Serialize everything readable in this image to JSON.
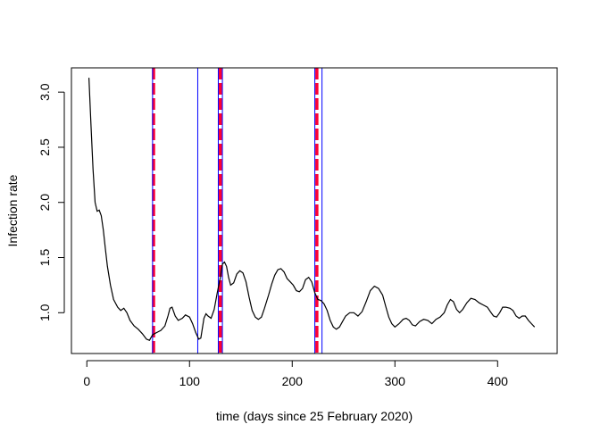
{
  "chart_data": {
    "type": "line",
    "title": "",
    "xlabel": "time (days since 25 February 2020)",
    "ylabel": "Infection rate",
    "xlim": [
      -15,
      458
    ],
    "ylim": [
      0.63,
      3.22
    ],
    "x_ticks": [
      0,
      100,
      200,
      300,
      400
    ],
    "y_ticks": [
      1.0,
      1.5,
      2.0,
      2.5,
      3.0
    ],
    "x_tick_labels": [
      "0",
      "100",
      "200",
      "300",
      "400"
    ],
    "y_tick_labels": [
      "1.0",
      "1.5",
      "2.0",
      "2.5",
      "3.0"
    ],
    "grid": false,
    "legend": "none",
    "line_color": "#000000",
    "series": [
      {
        "points": [
          [
            2,
            3.13
          ],
          [
            4,
            2.7
          ],
          [
            6,
            2.3
          ],
          [
            8,
            2.0
          ],
          [
            10,
            1.92
          ],
          [
            12,
            1.93
          ],
          [
            14,
            1.88
          ],
          [
            16,
            1.75
          ],
          [
            18,
            1.58
          ],
          [
            20,
            1.42
          ],
          [
            23,
            1.25
          ],
          [
            26,
            1.12
          ],
          [
            30,
            1.05
          ],
          [
            33,
            1.02
          ],
          [
            36,
            1.04
          ],
          [
            39,
            1.0
          ],
          [
            42,
            0.93
          ],
          [
            46,
            0.88
          ],
          [
            50,
            0.85
          ],
          [
            54,
            0.81
          ],
          [
            58,
            0.76
          ],
          [
            61,
            0.75
          ],
          [
            64,
            0.8
          ],
          [
            68,
            0.82
          ],
          [
            72,
            0.84
          ],
          [
            76,
            0.88
          ],
          [
            79,
            0.97
          ],
          [
            81,
            1.04
          ],
          [
            83,
            1.05
          ],
          [
            86,
            0.97
          ],
          [
            89,
            0.93
          ],
          [
            93,
            0.95
          ],
          [
            96,
            0.98
          ],
          [
            100,
            0.96
          ],
          [
            103,
            0.9
          ],
          [
            106,
            0.82
          ],
          [
            109,
            0.76
          ],
          [
            111,
            0.77
          ],
          [
            114,
            0.95
          ],
          [
            116,
            0.99
          ],
          [
            118,
            0.97
          ],
          [
            121,
            0.95
          ],
          [
            124,
            1.03
          ],
          [
            127,
            1.18
          ],
          [
            130,
            1.32
          ],
          [
            132,
            1.44
          ],
          [
            134,
            1.46
          ],
          [
            136,
            1.42
          ],
          [
            138,
            1.32
          ],
          [
            140,
            1.25
          ],
          [
            143,
            1.27
          ],
          [
            146,
            1.35
          ],
          [
            149,
            1.38
          ],
          [
            152,
            1.36
          ],
          [
            155,
            1.28
          ],
          [
            158,
            1.14
          ],
          [
            161,
            1.02
          ],
          [
            164,
            0.96
          ],
          [
            167,
            0.94
          ],
          [
            170,
            0.96
          ],
          [
            173,
            1.04
          ],
          [
            177,
            1.16
          ],
          [
            180,
            1.26
          ],
          [
            183,
            1.34
          ],
          [
            186,
            1.39
          ],
          [
            189,
            1.4
          ],
          [
            192,
            1.37
          ],
          [
            195,
            1.31
          ],
          [
            198,
            1.28
          ],
          [
            201,
            1.25
          ],
          [
            204,
            1.2
          ],
          [
            207,
            1.19
          ],
          [
            210,
            1.22
          ],
          [
            213,
            1.3
          ],
          [
            216,
            1.32
          ],
          [
            219,
            1.28
          ],
          [
            222,
            1.18
          ],
          [
            225,
            1.12
          ],
          [
            228,
            1.11
          ],
          [
            231,
            1.08
          ],
          [
            234,
            1.02
          ],
          [
            237,
            0.93
          ],
          [
            240,
            0.87
          ],
          [
            243,
            0.85
          ],
          [
            246,
            0.87
          ],
          [
            249,
            0.92
          ],
          [
            252,
            0.97
          ],
          [
            256,
            1.0
          ],
          [
            260,
            1.0
          ],
          [
            264,
            0.97
          ],
          [
            268,
            1.01
          ],
          [
            272,
            1.1
          ],
          [
            276,
            1.2
          ],
          [
            280,
            1.24
          ],
          [
            284,
            1.22
          ],
          [
            288,
            1.16
          ],
          [
            291,
            1.06
          ],
          [
            294,
            0.96
          ],
          [
            297,
            0.9
          ],
          [
            300,
            0.87
          ],
          [
            304,
            0.9
          ],
          [
            308,
            0.94
          ],
          [
            311,
            0.95
          ],
          [
            314,
            0.93
          ],
          [
            317,
            0.89
          ],
          [
            320,
            0.88
          ],
          [
            324,
            0.92
          ],
          [
            328,
            0.94
          ],
          [
            332,
            0.93
          ],
          [
            336,
            0.9
          ],
          [
            340,
            0.94
          ],
          [
            344,
            0.96
          ],
          [
            348,
            1.0
          ],
          [
            351,
            1.07
          ],
          [
            354,
            1.12
          ],
          [
            357,
            1.1
          ],
          [
            360,
            1.03
          ],
          [
            363,
            1.0
          ],
          [
            366,
            1.03
          ],
          [
            370,
            1.09
          ],
          [
            374,
            1.13
          ],
          [
            378,
            1.12
          ],
          [
            382,
            1.09
          ],
          [
            386,
            1.07
          ],
          [
            390,
            1.05
          ],
          [
            393,
            1.01
          ],
          [
            396,
            0.97
          ],
          [
            399,
            0.96
          ],
          [
            402,
            1.0
          ],
          [
            405,
            1.05
          ],
          [
            408,
            1.05
          ],
          [
            412,
            1.04
          ],
          [
            415,
            1.02
          ],
          [
            418,
            0.97
          ],
          [
            421,
            0.95
          ],
          [
            424,
            0.97
          ],
          [
            427,
            0.97
          ],
          [
            430,
            0.93
          ],
          [
            433,
            0.9
          ],
          [
            436,
            0.87
          ]
        ]
      }
    ],
    "vertical_lines": [
      {
        "x": 65,
        "color": "#ff0033",
        "style": "dashed",
        "kind": "red-dashed"
      },
      {
        "x": 130,
        "color": "#ff0033",
        "style": "dashed",
        "kind": "red-dashed"
      },
      {
        "x": 224,
        "color": "#ff0033",
        "style": "dashed",
        "kind": "red-dashed"
      },
      {
        "x": 64,
        "color": "#0000ff",
        "style": "solid",
        "kind": "blue"
      },
      {
        "x": 108,
        "color": "#0000ff",
        "style": "solid",
        "kind": "blue"
      },
      {
        "x": 128,
        "color": "#0000ff",
        "style": "solid",
        "kind": "blue"
      },
      {
        "x": 132,
        "color": "#0000ff",
        "style": "solid",
        "kind": "blue"
      },
      {
        "x": 222,
        "color": "#0000ff",
        "style": "solid",
        "kind": "blue"
      },
      {
        "x": 229,
        "color": "#0000ff",
        "style": "solid",
        "kind": "blue"
      }
    ]
  }
}
